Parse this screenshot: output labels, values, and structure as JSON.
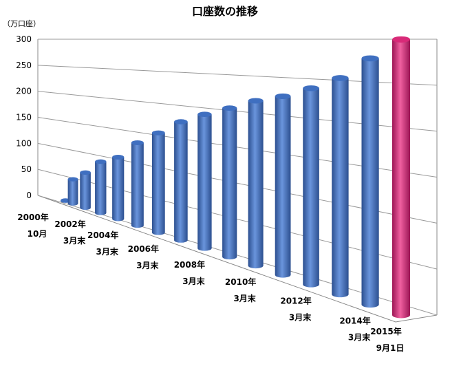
{
  "chart_data": {
    "type": "bar3d",
    "title": "口座数の推移",
    "y_unit": "（万口座）",
    "categories": [
      [
        "2000年",
        "10月"
      ],
      null,
      [
        "2002年",
        "3月末"
      ],
      null,
      [
        "2004年",
        "3月末"
      ],
      null,
      [
        "2006年",
        "3月末"
      ],
      null,
      [
        "2008年",
        "3月末"
      ],
      null,
      [
        "2010年",
        "3月末"
      ],
      null,
      [
        "2012年",
        "3月末"
      ],
      null,
      [
        "2014年",
        "3月末"
      ],
      [
        "2015年",
        "9月1日"
      ]
    ],
    "values": [
      1,
      44,
      61,
      85,
      98,
      126,
      146,
      167,
      182,
      195,
      209,
      219,
      233,
      249,
      275,
      299
    ],
    "colors": [
      "#3f6fc0",
      "#3f6fc0",
      "#3f6fc0",
      "#3f6fc0",
      "#3f6fc0",
      "#3f6fc0",
      "#3f6fc0",
      "#3f6fc0",
      "#3f6fc0",
      "#3f6fc0",
      "#3f6fc0",
      "#3f6fc0",
      "#3f6fc0",
      "#3f6fc0",
      "#3f6fc0",
      "#d82a78"
    ],
    "ylim": [
      0,
      300
    ],
    "yticks": [
      0,
      50,
      100,
      150,
      200,
      250,
      300
    ],
    "grid": true
  }
}
